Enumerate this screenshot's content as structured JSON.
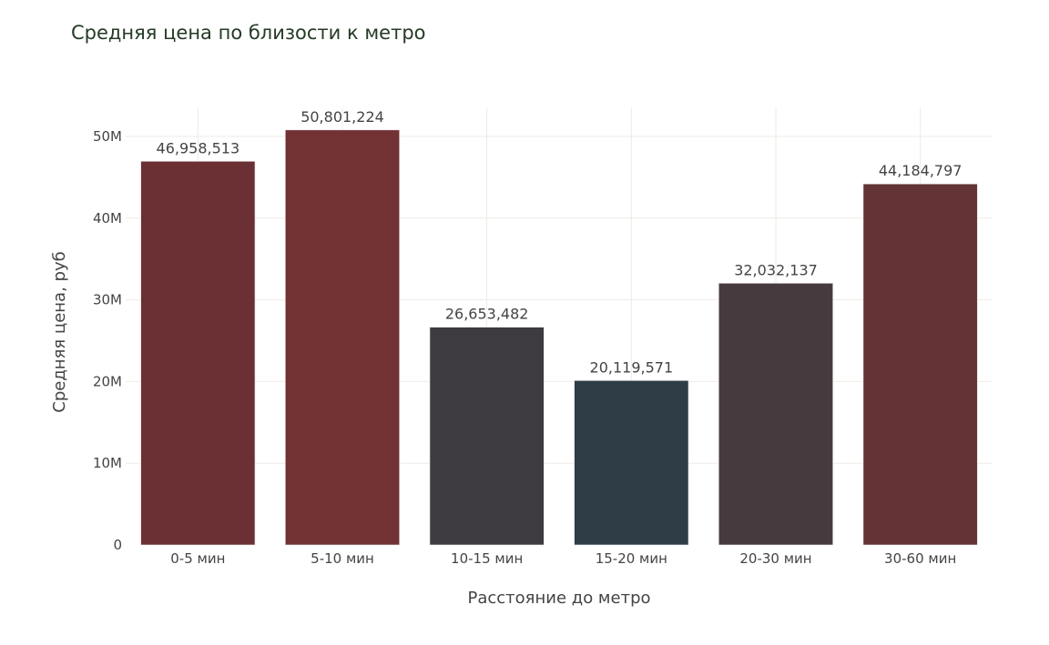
{
  "chart_data": {
    "type": "bar",
    "title": "Средняя цена по близости к метро",
    "xlabel": "Расстояние до метро",
    "ylabel": "Средняя цена, руб",
    "categories": [
      "0-5 мин",
      "5-10 мин",
      "10-15 мин",
      "15-20 мин",
      "20-30 мин",
      "30-60 мин"
    ],
    "values": [
      46958513,
      50801224,
      26653482,
      20119571,
      32032137,
      44184797
    ],
    "data_labels": [
      "46,958,513",
      "50,801,224",
      "26,653,482",
      "20,119,571",
      "32,032,137",
      "44,184,797"
    ],
    "colors": [
      "#6a3033",
      "#723133",
      "#3d3a40",
      "#2f3d46",
      "#473a3e",
      "#633335"
    ],
    "ylim": [
      0,
      50000000
    ],
    "yticks": [
      0,
      10000000,
      20000000,
      30000000,
      40000000,
      50000000
    ],
    "ytick_labels": [
      "0",
      "10M",
      "20M",
      "30M",
      "40M",
      "50M"
    ],
    "grid": true,
    "legend": "none"
  }
}
